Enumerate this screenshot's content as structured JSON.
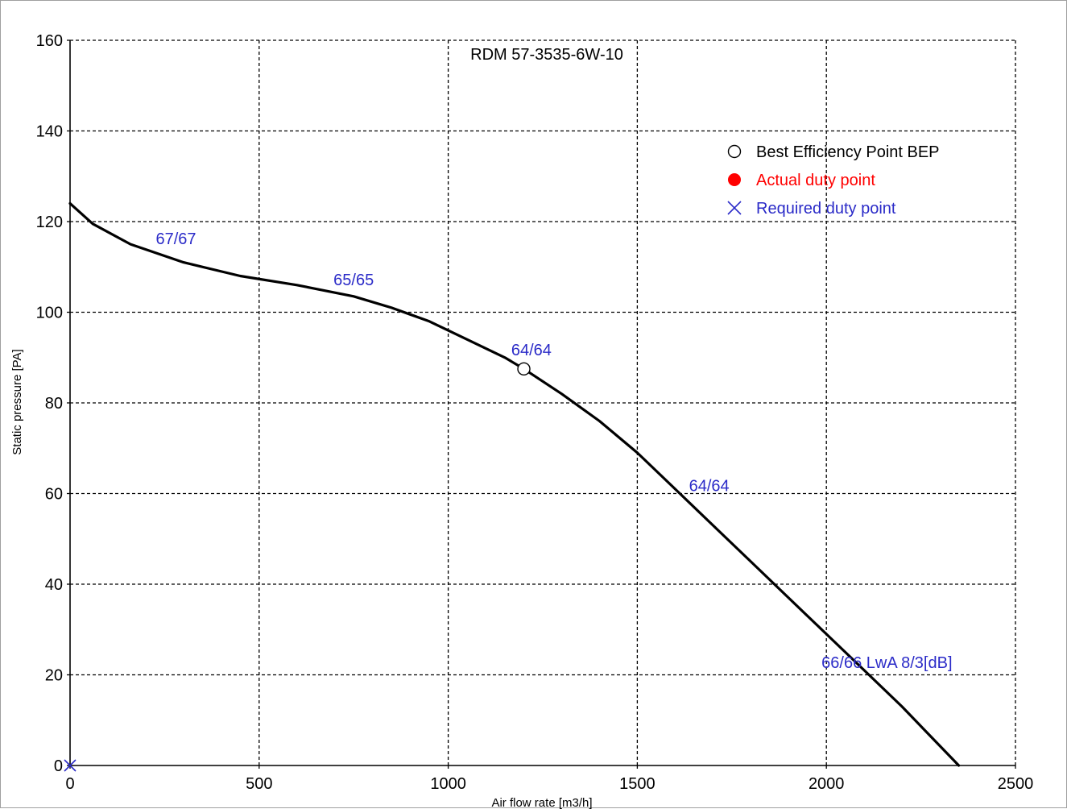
{
  "chart_data": {
    "type": "line",
    "title": "RDM 57-3535-6W-10",
    "xlabel": "Air flow rate [m3/h]",
    "ylabel": "Static pressure [PA]",
    "xlim": [
      0,
      2500
    ],
    "ylim": [
      0,
      160
    ],
    "x_ticks": [
      "0",
      "500",
      "1000",
      "1500",
      "2000",
      "2500"
    ],
    "y_ticks": [
      "0",
      "20",
      "40",
      "60",
      "80",
      "100",
      "120",
      "140",
      "160"
    ],
    "grid": true,
    "grid_style": "dashed",
    "legend_position": "top-right",
    "legend": [
      {
        "label": "Best Efficiency Point BEP",
        "marker": "open-circle",
        "color": "#000000"
      },
      {
        "label": "Actual duty point",
        "marker": "filled-circle",
        "color": "#ff0000"
      },
      {
        "label": "Required duty point",
        "marker": "x-cross",
        "color": "#2b2bc8"
      }
    ],
    "series": [
      {
        "color": "#000000",
        "x": [
          0,
          60,
          160,
          300,
          450,
          600,
          750,
          850,
          950,
          1050,
          1150,
          1200,
          1300,
          1400,
          1500,
          1600,
          1700,
          1800,
          1900,
          2000,
          2100,
          2200,
          2350
        ],
        "y": [
          124,
          119.5,
          115,
          111,
          108,
          106,
          103.5,
          101,
          98,
          94,
          90,
          87.5,
          82,
          76,
          69,
          61,
          53,
          45,
          37,
          29,
          21,
          13,
          0
        ]
      }
    ],
    "bep_point": {
      "x": 1200,
      "y": 87.5
    },
    "required_point": {
      "x": 0,
      "y": 0
    },
    "annotations": [
      {
        "text": "67/67",
        "x": 280,
        "y": 115
      },
      {
        "text": "65/65",
        "x": 750,
        "y": 106
      },
      {
        "text": "64/64",
        "x": 1220,
        "y": 90.5
      },
      {
        "text": "64/64",
        "x": 1690,
        "y": 60.5
      },
      {
        "text": "66/66 LwA 8/3[dB]",
        "x": 2160,
        "y": 21.5
      }
    ]
  }
}
